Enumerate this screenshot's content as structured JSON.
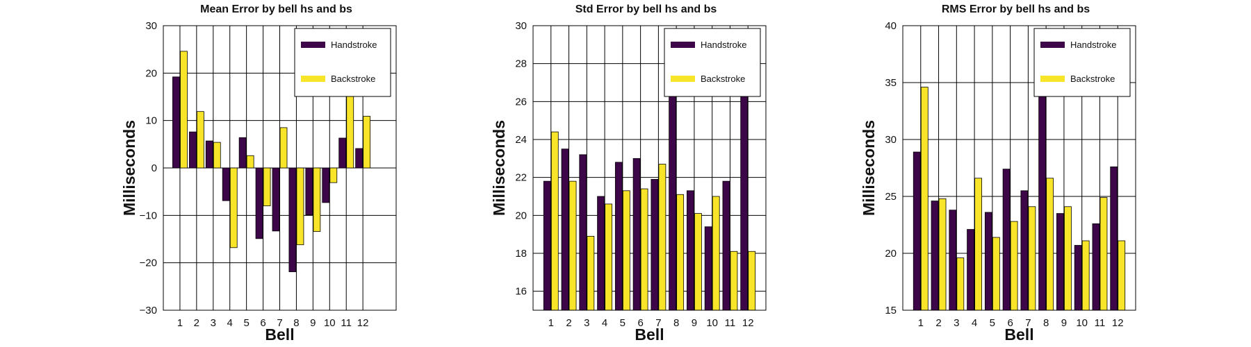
{
  "colors": {
    "handstroke": "#3d0648",
    "backstroke": "#f8e52a",
    "grid": "#000000",
    "axis": "#000000"
  },
  "chart_data": [
    {
      "type": "bar",
      "title": "Mean Error by bell hs and bs",
      "xlabel": "Bell",
      "ylabel": "Milliseconds",
      "categories": [
        "1",
        "2",
        "3",
        "4",
        "5",
        "6",
        "7",
        "8",
        "9",
        "10",
        "11",
        "12"
      ],
      "xlim": [
        0,
        14
      ],
      "ylim": [
        -30,
        30
      ],
      "yticks": [
        30,
        20,
        10,
        0,
        -10,
        -20,
        -30
      ],
      "ytick_labels": [
        "30",
        "20",
        "10",
        "0",
        "−10",
        "−20",
        "−30"
      ],
      "grid": true,
      "legend_position": "top-right",
      "series": [
        {
          "name": "Handstroke",
          "color": "#3d0648",
          "values": [
            19.2,
            7.6,
            5.7,
            -6.9,
            6.4,
            -14.9,
            -13.3,
            -21.9,
            -9.9,
            -7.3,
            6.3,
            4.1
          ]
        },
        {
          "name": "Backstroke",
          "color": "#f8e52a",
          "values": [
            24.6,
            11.9,
            5.4,
            -16.8,
            2.6,
            -8.0,
            8.5,
            -16.2,
            -13.4,
            -3.1,
            17.0,
            10.9
          ]
        }
      ]
    },
    {
      "type": "bar",
      "title": "Std Error by bell hs and bs",
      "xlabel": "Bell",
      "ylabel": "Milliseconds",
      "categories": [
        "1",
        "2",
        "3",
        "4",
        "5",
        "6",
        "7",
        "8",
        "9",
        "10",
        "11",
        "12"
      ],
      "xlim": [
        0,
        13
      ],
      "ylim": [
        15,
        30
      ],
      "yticks": [
        30,
        28,
        26,
        24,
        22,
        20,
        18,
        16
      ],
      "ytick_labels": [
        "30",
        "28",
        "26",
        "24",
        "22",
        "20",
        "18",
        "16"
      ],
      "grid": true,
      "legend_position": "top-right",
      "series": [
        {
          "name": "Handstroke",
          "color": "#3d0648",
          "values": [
            21.8,
            23.5,
            23.2,
            21.0,
            22.8,
            23.0,
            21.9,
            29.3,
            21.3,
            19.4,
            21.8,
            27.4
          ]
        },
        {
          "name": "Backstroke",
          "color": "#f8e52a",
          "values": [
            24.4,
            21.8,
            18.9,
            20.6,
            21.3,
            21.4,
            22.7,
            21.1,
            20.1,
            21.0,
            18.1,
            18.1
          ]
        }
      ]
    },
    {
      "type": "bar",
      "title": "RMS Error by bell hs and bs",
      "xlabel": "Bell",
      "ylabel": "Milliseconds",
      "categories": [
        "1",
        "2",
        "3",
        "4",
        "5",
        "6",
        "7",
        "8",
        "9",
        "10",
        "11",
        "12"
      ],
      "xlim": [
        0,
        13
      ],
      "ylim": [
        15,
        40
      ],
      "yticks": [
        40,
        35,
        30,
        25,
        20,
        15
      ],
      "ytick_labels": [
        "40",
        "35",
        "30",
        "25",
        "20",
        "15"
      ],
      "grid": true,
      "legend_position": "top-right",
      "series": [
        {
          "name": "Handstroke",
          "color": "#3d0648",
          "values": [
            28.9,
            24.6,
            23.8,
            22.1,
            23.6,
            27.4,
            25.5,
            36.5,
            23.5,
            20.7,
            22.6,
            27.6
          ]
        },
        {
          "name": "Backstroke",
          "color": "#f8e52a",
          "values": [
            34.6,
            24.8,
            19.6,
            26.6,
            21.4,
            22.8,
            24.1,
            26.6,
            24.1,
            21.1,
            24.9,
            21.1
          ]
        }
      ]
    }
  ]
}
